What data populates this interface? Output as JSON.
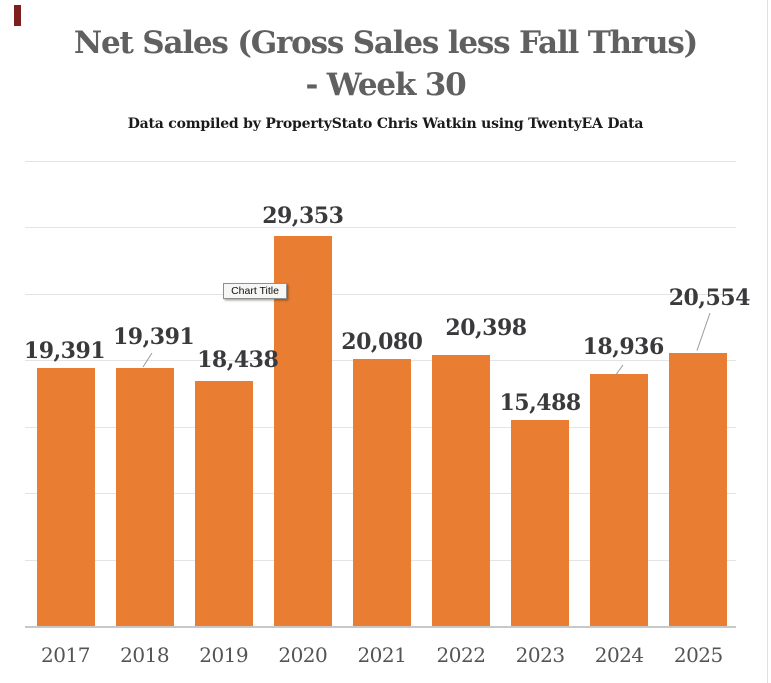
{
  "title": {
    "line1": "Net Sales (Gross Sales less Fall Thrus)",
    "line2": "- Week 30"
  },
  "subtitle": "Data compiled by PropertyStato Chris Watkin using TwentyEA Data",
  "tooltip": {
    "text": "Chart Title"
  },
  "chart_data": {
    "type": "bar",
    "title": "Net Sales (Gross Sales less Fall Thrus) - Week 30",
    "subtitle": "Data compiled by PropertyStato Chris Watkin using TwentyEA Data",
    "categories": [
      "2017",
      "2018",
      "2019",
      "2020",
      "2021",
      "2022",
      "2023",
      "2024",
      "2025"
    ],
    "values": [
      19391,
      19391,
      18438,
      29353,
      20080,
      20398,
      15488,
      18936,
      20554
    ],
    "labels": [
      "19,391",
      "19,391",
      "18,438",
      "29,353",
      "20,080",
      "20,398",
      "15,488",
      "18,936",
      "20,554"
    ],
    "xlabel": "",
    "ylabel": "",
    "ylim": [
      0,
      35000
    ],
    "gridline_step": 5000,
    "grid": true,
    "legend": "none",
    "bar_color": "#E97E32",
    "value_label_color": "#3A3A3C",
    "axis_label_color": "#545456",
    "gridline_color": "#E4E4E4",
    "axis_line_color": "#C8C8C8",
    "title_color": "#606060",
    "leader_line_color": "#9A9A9A"
  }
}
